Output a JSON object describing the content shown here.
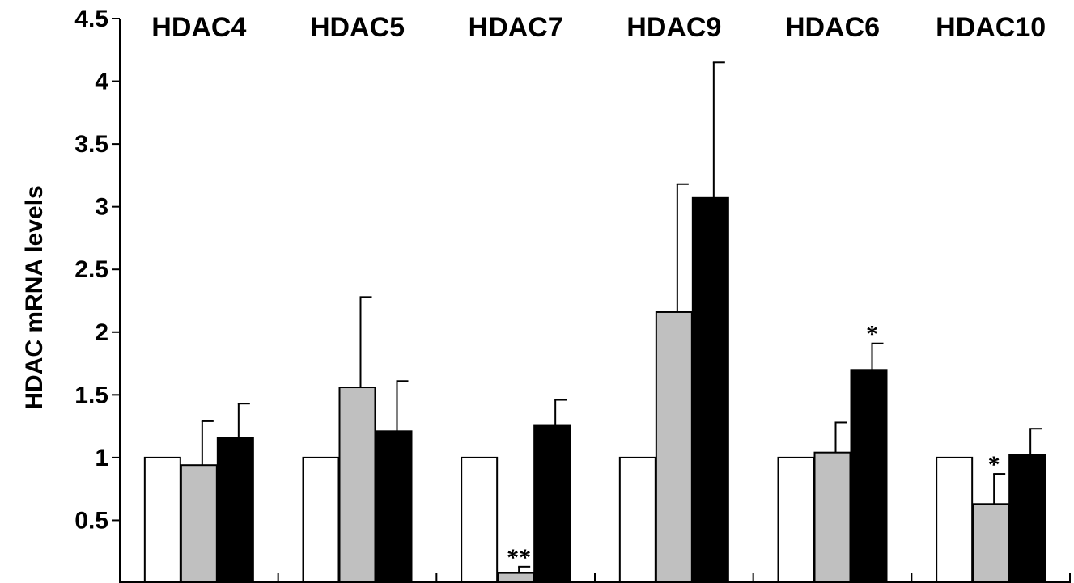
{
  "chart_data": {
    "type": "bar",
    "title": "",
    "xlabel": "",
    "ylabel": "HDAC mRNA levels",
    "ylim": [
      0,
      4.5
    ],
    "yticks": [
      0.5,
      1,
      1.5,
      2,
      2.5,
      3,
      3.5,
      4,
      4.5
    ],
    "ytick_labels": [
      "0.5",
      "1",
      "1.5",
      "2",
      "2.5",
      "3",
      "3.5",
      "4",
      "4.5"
    ],
    "grid": false,
    "legend": "none",
    "categories": [
      "HDAC4",
      "HDAC5",
      "HDAC7",
      "HDAC9",
      "HDAC6",
      "HDAC10"
    ],
    "series": [
      {
        "color": "#ffffff",
        "values": [
          1.0,
          1.0,
          1.0,
          1.0,
          1.0,
          1.0
        ],
        "errors": [
          0,
          0,
          0,
          0,
          0,
          0
        ]
      },
      {
        "color": "#c0c0c0",
        "values": [
          0.94,
          1.56,
          0.08,
          2.16,
          1.04,
          0.63
        ],
        "errors": [
          0.35,
          0.72,
          0.05,
          1.02,
          0.24,
          0.24
        ]
      },
      {
        "color": "#000000",
        "values": [
          1.16,
          1.21,
          1.26,
          3.07,
          1.7,
          1.02
        ],
        "errors": [
          0.27,
          0.4,
          0.2,
          1.08,
          0.21,
          0.21
        ]
      }
    ],
    "annotations": [
      {
        "category": "HDAC7",
        "series": 1,
        "text": "**"
      },
      {
        "category": "HDAC6",
        "series": 2,
        "text": "*"
      },
      {
        "category": "HDAC10",
        "series": 1,
        "text": "*"
      }
    ]
  }
}
